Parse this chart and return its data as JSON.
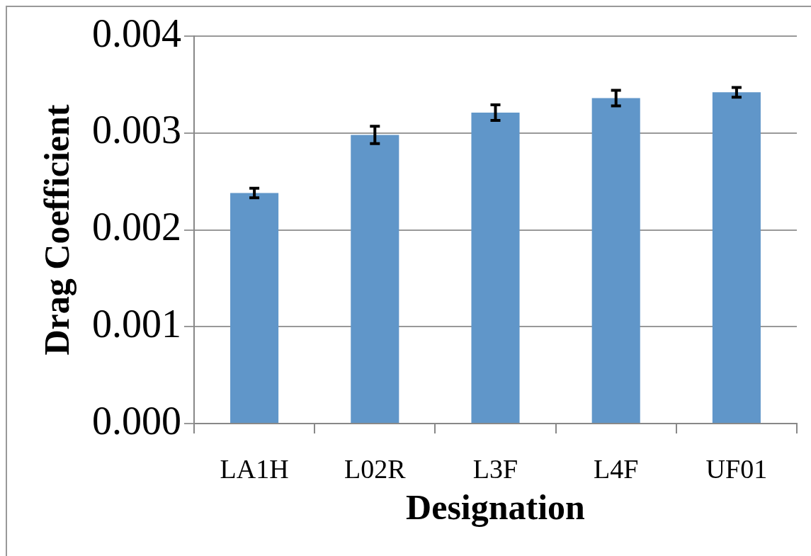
{
  "chart_data": {
    "type": "bar",
    "xlabel": "Designation",
    "ylabel": "Drag Coefficient",
    "categories": [
      "LA1H",
      "L02R",
      "L3F",
      "L4F",
      "UF01"
    ],
    "values": [
      0.00238,
      0.00298,
      0.00321,
      0.00336,
      0.00342
    ],
    "errors": [
      5e-05,
      9e-05,
      8e-05,
      8e-05,
      5e-05
    ],
    "color": "#6096c9",
    "ylim": [
      0,
      0.004
    ],
    "yticks": [
      {
        "value": 0,
        "label": "0.000"
      },
      0.001,
      0.002,
      0.003,
      0.004
    ],
    "grid": "y",
    "legend": false
  }
}
